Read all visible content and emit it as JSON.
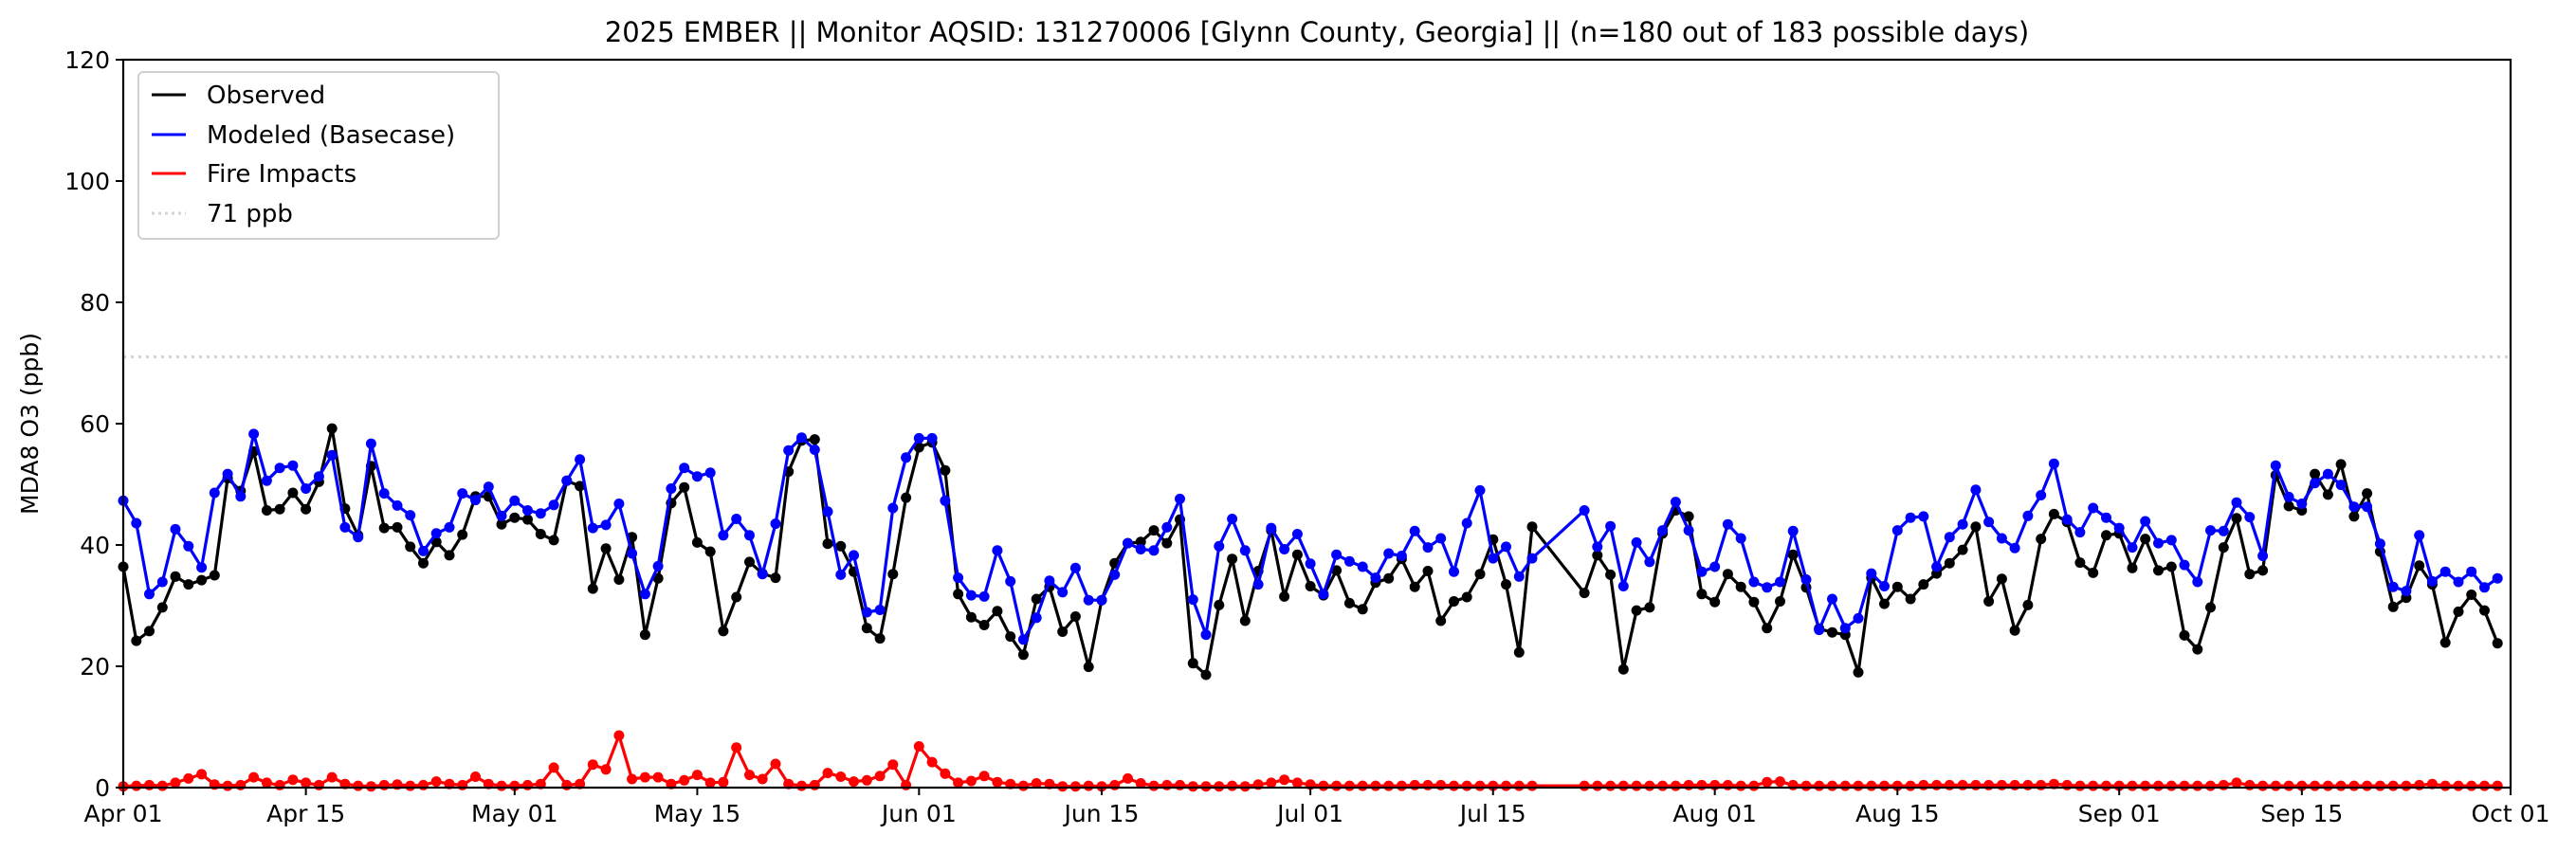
{
  "chart_data": {
    "type": "line",
    "title": "2025 EMBER || Monitor AQSID: 131270006 [Glynn County, Georgia] || (n=180 out of 183 possible days)",
    "xlabel": "",
    "ylabel": "MDA8 O3 (ppb)",
    "ylim": [
      0,
      120
    ],
    "xlim": [
      "2025-04-01",
      "2025-10-01"
    ],
    "start_date": "2025-04-01",
    "n_days": 183,
    "missing_days": [
      "2025-07-19",
      "2025-07-20",
      "2025-07-21"
    ],
    "yticks": [
      0,
      20,
      40,
      60,
      80,
      100,
      120
    ],
    "xticks": [
      {
        "label": "Apr 01",
        "day": 0
      },
      {
        "label": "Apr 15",
        "day": 14
      },
      {
        "label": "May 01",
        "day": 30
      },
      {
        "label": "May 15",
        "day": 44
      },
      {
        "label": "Jun 01",
        "day": 61
      },
      {
        "label": "Jun 15",
        "day": 75
      },
      {
        "label": "Jul 01",
        "day": 91
      },
      {
        "label": "Jul 15",
        "day": 105
      },
      {
        "label": "Aug 01",
        "day": 122
      },
      {
        "label": "Aug 15",
        "day": 136
      },
      {
        "label": "Sep 01",
        "day": 153
      },
      {
        "label": "Sep 15",
        "day": 167
      },
      {
        "label": "Oct 01",
        "day": 183
      }
    ],
    "grid": false,
    "legend_position": "top-left",
    "reference_line": {
      "label": "71 ppb",
      "value": 71,
      "color": "#d3d3d3"
    },
    "series": [
      {
        "name": "Observed",
        "color": "#000000",
        "values": [
          36.4,
          24.2,
          25.8,
          29.7,
          34.8,
          33.5,
          34.2,
          35,
          51,
          48.9,
          55.4,
          45.7,
          45.9,
          48.6,
          45.9,
          50.4,
          59.2,
          46,
          41.6,
          53,
          42.8,
          42.9,
          39.7,
          37,
          40.5,
          38.3,
          41.7,
          48,
          48,
          43.4,
          44.5,
          44.2,
          41.8,
          40.8,
          50.6,
          49.7,
          32.8,
          39.4,
          34.3,
          41.3,
          25.2,
          34.5,
          46.9,
          49.5,
          40.4,
          38.9,
          25.8,
          31.4,
          37.2,
          35.3,
          34.6,
          52.1,
          57.2,
          57.4,
          40.2,
          39.8,
          35.6,
          26.3,
          24.6,
          35.2,
          47.8,
          56.1,
          56.9,
          52.3,
          31.9,
          28.1,
          26.8,
          29.1,
          24.9,
          21.9,
          31.1,
          33.1,
          25.7,
          28.2,
          19.9,
          30.9,
          37,
          40.3,
          40.5,
          42.4,
          40.3,
          44.2,
          20.5,
          18.6,
          30.1,
          37.7,
          27.5,
          35.7,
          42.4,
          31.5,
          38.4,
          33.2,
          31.7,
          35.8,
          30.4,
          29.4,
          33.8,
          34.5,
          37.7,
          33.1,
          35.7,
          27.5,
          30.7,
          31.4,
          35.2,
          40.9,
          33.5,
          22.3,
          43,
          null,
          null,
          null,
          32.1,
          38.3,
          35.1,
          19.5,
          29.2,
          29.7,
          41.9,
          45.7,
          44.7,
          31.9,
          30.6,
          35.2,
          33.1,
          30.6,
          26.3,
          30.7,
          38.4,
          33,
          26.2,
          25.6,
          25.2,
          19,
          34.6,
          30.3,
          33.1,
          31.1,
          33.5,
          35.3,
          37,
          39.2,
          43,
          30.7,
          34.4,
          25.9,
          30.1,
          41,
          45.1,
          43.8,
          37.1,
          35.4,
          41.6,
          41.9,
          36.2,
          41,
          35.8,
          36.4,
          25.1,
          22.8,
          29.7,
          39.6,
          44.4,
          35.2,
          35.8,
          51.5,
          46.4,
          45.7,
          51.7,
          48.3,
          53.3,
          44.7,
          48.5,
          38.9,
          29.8,
          31.3,
          36.6,
          33.5,
          23.9,
          29,
          31.8,
          29.2,
          23.8
        ]
      },
      {
        "name": "Modeled (Basecase)",
        "color": "#0000ff",
        "values": [
          47.3,
          43.6,
          31.9,
          33.9,
          42.6,
          39.8,
          36.3,
          48.6,
          51.7,
          48,
          58.3,
          50.6,
          52.7,
          53.1,
          49.3,
          51.3,
          54.8,
          42.9,
          41.3,
          56.7,
          48.5,
          46.5,
          44.9,
          39,
          41.9,
          42.9,
          48.5,
          47.4,
          49.6,
          44.8,
          47.3,
          45.7,
          45.2,
          46.6,
          50.6,
          54.1,
          42.8,
          43.3,
          46.8,
          38.6,
          31.9,
          36.5,
          49.3,
          52.7,
          51.3,
          51.9,
          41.6,
          44.3,
          41.6,
          35.2,
          43.5,
          55.6,
          57.7,
          55.7,
          45.5,
          35.1,
          38.3,
          28.9,
          29.3,
          46.1,
          54.4,
          57.6,
          57.6,
          47.3,
          34.6,
          31.7,
          31.5,
          39.1,
          34,
          24.4,
          28,
          34.1,
          32.2,
          36.2,
          30.9,
          30.9,
          35.1,
          40.3,
          39.3,
          39.1,
          42.9,
          47.6,
          31,
          25.2,
          39.8,
          44.3,
          39.1,
          33.5,
          42.8,
          39.3,
          41.8,
          36.9,
          31.9,
          38.4,
          37.3,
          36.4,
          34.6,
          38.6,
          38.2,
          42.3,
          39.6,
          41.1,
          35.6,
          43.6,
          49,
          37.8,
          39.7,
          34.8,
          37.8,
          null,
          null,
          null,
          45.7,
          39.7,
          43.1,
          33.2,
          40.4,
          37.2,
          42.4,
          47.1,
          42.4,
          35.6,
          36.4,
          43.4,
          41.1,
          33.9,
          33,
          33.9,
          42.3,
          34.3,
          26,
          31.1,
          26.3,
          27.9,
          35.3,
          33.2,
          42.4,
          44.5,
          44.7,
          36.4,
          41.3,
          43.4,
          49.1,
          43.8,
          41.1,
          39.5,
          44.8,
          48.2,
          53.4,
          44.2,
          42.1,
          46.1,
          44.5,
          42.8,
          39.6,
          43.9,
          40.3,
          40.8,
          36.7,
          33.9,
          42.4,
          42.3,
          47,
          44.6,
          38.2,
          53.1,
          47.9,
          46.8,
          50.2,
          51.7,
          49.9,
          46.3,
          46.3,
          40.2,
          33.1,
          32.4,
          41.6,
          34,
          35.6,
          33.9,
          35.6,
          33,
          34.5
        ]
      },
      {
        "name": "Fire Impacts",
        "color": "#ff0000",
        "values": [
          0.2,
          0.3,
          0.4,
          0.3,
          0.8,
          1.5,
          2.2,
          0.5,
          0.3,
          0.4,
          1.7,
          0.8,
          0.4,
          1.3,
          0.8,
          0.4,
          1.7,
          0.6,
          0.3,
          0.2,
          0.4,
          0.5,
          0.3,
          0.4,
          1,
          0.6,
          0.4,
          1.8,
          0.6,
          0.3,
          0.3,
          0.4,
          0.6,
          3.3,
          0.4,
          0.6,
          3.8,
          3,
          8.6,
          1.4,
          1.7,
          1.7,
          0.6,
          1.2,
          2.1,
          0.8,
          0.9,
          6.6,
          2.1,
          1.4,
          3.9,
          0.6,
          0.3,
          0.4,
          2.4,
          1.8,
          1,
          1.2,
          1.9,
          3.8,
          0.4,
          6.8,
          4.2,
          2.3,
          0.8,
          1.1,
          1.9,
          0.9,
          0.6,
          0.3,
          0.7,
          0.6,
          0.2,
          0.2,
          0.3,
          0.2,
          0.4,
          1.5,
          0.7,
          0.3,
          0.4,
          0.4,
          0.2,
          0.2,
          0.2,
          0.3,
          0.2,
          0.5,
          0.8,
          1.3,
          0.8,
          0.5,
          0.3,
          0.3,
          0.3,
          0.3,
          0.3,
          0.3,
          0.3,
          0.4,
          0.4,
          0.4,
          0.3,
          0.3,
          0.3,
          0.3,
          0.3,
          0.3,
          0.3,
          null,
          null,
          null,
          0.3,
          0.3,
          0.3,
          0.3,
          0.3,
          0.3,
          0.3,
          0.3,
          0.4,
          0.4,
          0.4,
          0.4,
          0.3,
          0.3,
          0.9,
          1,
          0.4,
          0.3,
          0.3,
          0.3,
          0.3,
          0.3,
          0.3,
          0.3,
          0.3,
          0.3,
          0.4,
          0.4,
          0.4,
          0.4,
          0.4,
          0.4,
          0.4,
          0.4,
          0.4,
          0.4,
          0.6,
          0.4,
          0.3,
          0.3,
          0.3,
          0.3,
          0.3,
          0.3,
          0.3,
          0.3,
          0.3,
          0.3,
          0.3,
          0.4,
          0.8,
          0.4,
          0.3,
          0.3,
          0.3,
          0.3,
          0.3,
          0.3,
          0.3,
          0.3,
          0.3,
          0.3,
          0.3,
          0.3,
          0.4,
          0.6,
          0.3,
          0.3,
          0.3,
          0.3,
          0.3
        ]
      }
    ]
  }
}
